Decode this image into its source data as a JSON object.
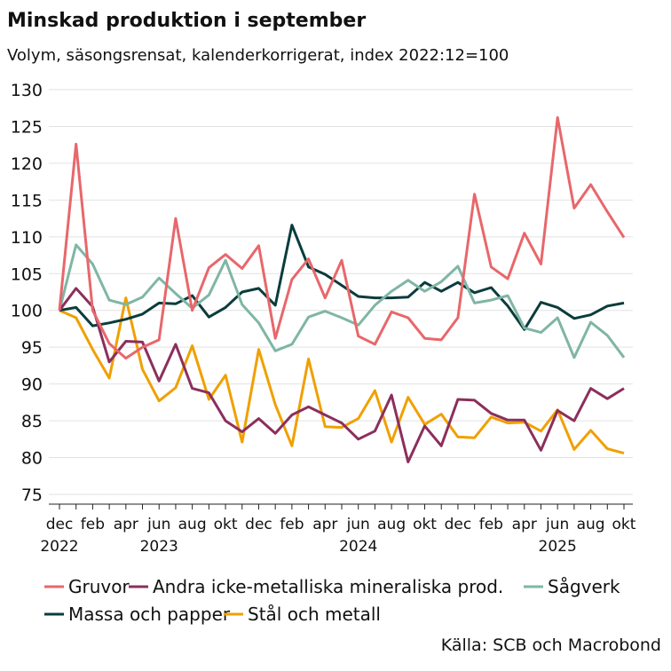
{
  "chart_data": {
    "type": "line",
    "title": "Minskad produktion i september",
    "subtitle": "Volym, säsongsrensat, kalenderkorrigerat, index 2022:12=100",
    "source": "Källa: SCB och Macrobond",
    "categories": [
      "dec\n2022",
      null,
      "feb",
      null,
      "apr",
      null,
      "jun\n2023",
      null,
      "aug",
      null,
      "okt",
      null,
      "dec",
      null,
      "feb",
      null,
      "apr",
      null,
      "jun\n2024",
      null,
      "aug",
      null,
      "okt",
      null,
      "dec",
      null,
      "feb",
      null,
      "apr",
      null,
      "jun\n2025",
      null,
      "aug",
      null,
      "okt"
    ],
    "ylim": [
      75,
      130
    ],
    "yticks": [
      75,
      80,
      85,
      90,
      95,
      100,
      105,
      110,
      115,
      120,
      125,
      130
    ],
    "grid": true,
    "series": [
      {
        "name": "Gruvor",
        "color": "#e8676b",
        "values": [
          100,
          122.6,
          100,
          95.5,
          93.5,
          95,
          96,
          112.5,
          100,
          105.8,
          107.6,
          105.7,
          108.8,
          96.2,
          104.2,
          107,
          101.7,
          106.8,
          96.5,
          95.4,
          99.8,
          99,
          96.2,
          96,
          99,
          115.8,
          105.9,
          104.3,
          110.5,
          106.3,
          126.2,
          113.9,
          117.1,
          113.4,
          109.9
        ]
      },
      {
        "name": "Andra icke-metalliska mineraliska prod.",
        "color": "#8b2f5c",
        "values": [
          100,
          103,
          100.5,
          93,
          95.8,
          95.7,
          90.4,
          95.4,
          89.4,
          88.8,
          85,
          83.5,
          85.3,
          83.3,
          85.8,
          86.9,
          85.8,
          84.7,
          82.5,
          83.6,
          88.5,
          79.4,
          84.3,
          81.6,
          87.9,
          87.8,
          86,
          85.1,
          85.1,
          81,
          86.4,
          85,
          89.4,
          88,
          89.4
        ]
      },
      {
        "name": "Sågverk",
        "color": "#7fb6a4",
        "values": [
          100,
          108.9,
          106.3,
          101.4,
          100.8,
          101.8,
          104.4,
          102.3,
          100.3,
          102.1,
          106.8,
          100.8,
          98.3,
          94.5,
          95.4,
          99.1,
          99.9,
          99,
          98,
          100.7,
          102.6,
          104.1,
          102.6,
          103.9,
          106,
          101,
          101.4,
          102,
          97.6,
          97,
          99,
          93.6,
          98.4,
          96.6,
          93.6
        ]
      },
      {
        "name": "Massa och papper",
        "color": "#0b3c3d",
        "values": [
          100,
          100.4,
          97.9,
          98.3,
          98.8,
          99.5,
          101,
          100.9,
          102,
          99.1,
          100.4,
          102.5,
          103,
          100.7,
          111.6,
          105.9,
          104.9,
          103.4,
          101.9,
          101.7,
          101.7,
          101.8,
          103.8,
          102.6,
          103.8,
          102.4,
          103.1,
          100.6,
          97.4,
          101.1,
          100.4,
          98.9,
          99.4,
          100.6,
          101
        ]
      },
      {
        "name": "Stål och metall",
        "color": "#f0a000",
        "values": [
          100,
          99,
          94.7,
          90.8,
          101.7,
          92,
          87.7,
          89.5,
          95.2,
          87.9,
          91.2,
          82.1,
          94.7,
          87.2,
          81.6,
          93.4,
          84.2,
          84.1,
          85.3,
          89.1,
          82.1,
          88.2,
          84.5,
          85.9,
          82.8,
          82.7,
          85.5,
          84.7,
          84.8,
          83.6,
          86.5,
          81.1,
          83.7,
          81.2,
          80.6
        ]
      }
    ]
  }
}
